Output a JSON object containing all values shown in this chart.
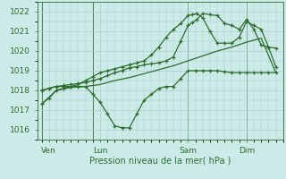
{
  "bg_color": "#cceae7",
  "grid_color": "#aacfcc",
  "line_color": "#2d6e2d",
  "xlabel": "Pression niveau de la mer( hPa )",
  "ylim": [
    1015.5,
    1022.5
  ],
  "yticks": [
    1016,
    1017,
    1018,
    1019,
    1020,
    1021,
    1022
  ],
  "xlim": [
    -0.3,
    16.5
  ],
  "day_labels": [
    "Ven",
    "Lun",
    "Sam",
    "Dim"
  ],
  "day_positions": [
    0.5,
    4.0,
    10.0,
    14.0
  ],
  "vline_positions": [
    0.0,
    3.5,
    10.0,
    14.0
  ],
  "series1_x": [
    0,
    0.5,
    1,
    1.5,
    2,
    2.5,
    3,
    3.5,
    4,
    4.5,
    5,
    5.5,
    6,
    6.5,
    7,
    7.5,
    8,
    8.5,
    9,
    9.5,
    10,
    10.5,
    11,
    11.5,
    12,
    12.5,
    13,
    13.5,
    14,
    14.5,
    15,
    15.5,
    16
  ],
  "series1_y": [
    1017.3,
    1017.6,
    1018.0,
    1018.1,
    1018.2,
    1018.2,
    1018.2,
    1017.8,
    1017.4,
    1016.8,
    1016.2,
    1016.1,
    1016.1,
    1016.8,
    1017.5,
    1017.8,
    1018.1,
    1018.2,
    1018.2,
    1018.6,
    1019.0,
    1019.0,
    1019.0,
    1019.0,
    1019.0,
    1018.95,
    1018.9,
    1018.9,
    1018.9,
    1018.9,
    1018.9,
    1018.9,
    1018.9
  ],
  "series2_x": [
    0,
    1,
    2,
    3,
    4,
    5,
    6,
    7,
    8,
    9,
    10,
    11,
    12,
    13,
    14,
    15,
    16
  ],
  "series2_y": [
    1017.3,
    1018.0,
    1018.15,
    1018.2,
    1018.3,
    1018.5,
    1018.65,
    1018.85,
    1019.05,
    1019.25,
    1019.5,
    1019.75,
    1020.0,
    1020.2,
    1020.45,
    1020.65,
    1018.9
  ],
  "series3_x": [
    0,
    0.5,
    1,
    1.5,
    2,
    2.5,
    3,
    3.5,
    4,
    4.5,
    5,
    5.5,
    6,
    6.5,
    7,
    7.5,
    8,
    8.5,
    9,
    9.5,
    10,
    10.3,
    10.6,
    11,
    11.5,
    12,
    12.5,
    13,
    13.5,
    14,
    14.5,
    15,
    15.5,
    16
  ],
  "series3_y": [
    1018.0,
    1018.1,
    1018.2,
    1018.25,
    1018.3,
    1018.35,
    1018.4,
    1018.5,
    1018.6,
    1018.75,
    1018.9,
    1019.0,
    1019.15,
    1019.2,
    1019.3,
    1019.35,
    1019.4,
    1019.5,
    1019.7,
    1020.5,
    1021.3,
    1021.45,
    1021.6,
    1021.9,
    1021.85,
    1021.8,
    1021.4,
    1021.3,
    1021.1,
    1021.6,
    1021.1,
    1020.3,
    1020.2,
    1020.15
  ],
  "series4_x": [
    0,
    0.5,
    1,
    1.5,
    2,
    2.5,
    3,
    3.5,
    4,
    4.5,
    5,
    5.5,
    6,
    6.5,
    7,
    7.5,
    8,
    8.5,
    9,
    9.5,
    10,
    10.3,
    10.6,
    11,
    11.5,
    12,
    12.5,
    13,
    13.5,
    14,
    14.5,
    15,
    15.5,
    16
  ],
  "series4_y": [
    1018.0,
    1018.1,
    1018.2,
    1018.2,
    1018.2,
    1018.3,
    1018.5,
    1018.7,
    1018.9,
    1019.0,
    1019.1,
    1019.2,
    1019.3,
    1019.4,
    1019.5,
    1019.8,
    1020.2,
    1020.7,
    1021.1,
    1021.4,
    1021.8,
    1021.85,
    1021.9,
    1021.7,
    1021.0,
    1020.4,
    1020.4,
    1020.4,
    1020.7,
    1021.5,
    1021.3,
    1021.1,
    1020.2,
    1019.2
  ]
}
